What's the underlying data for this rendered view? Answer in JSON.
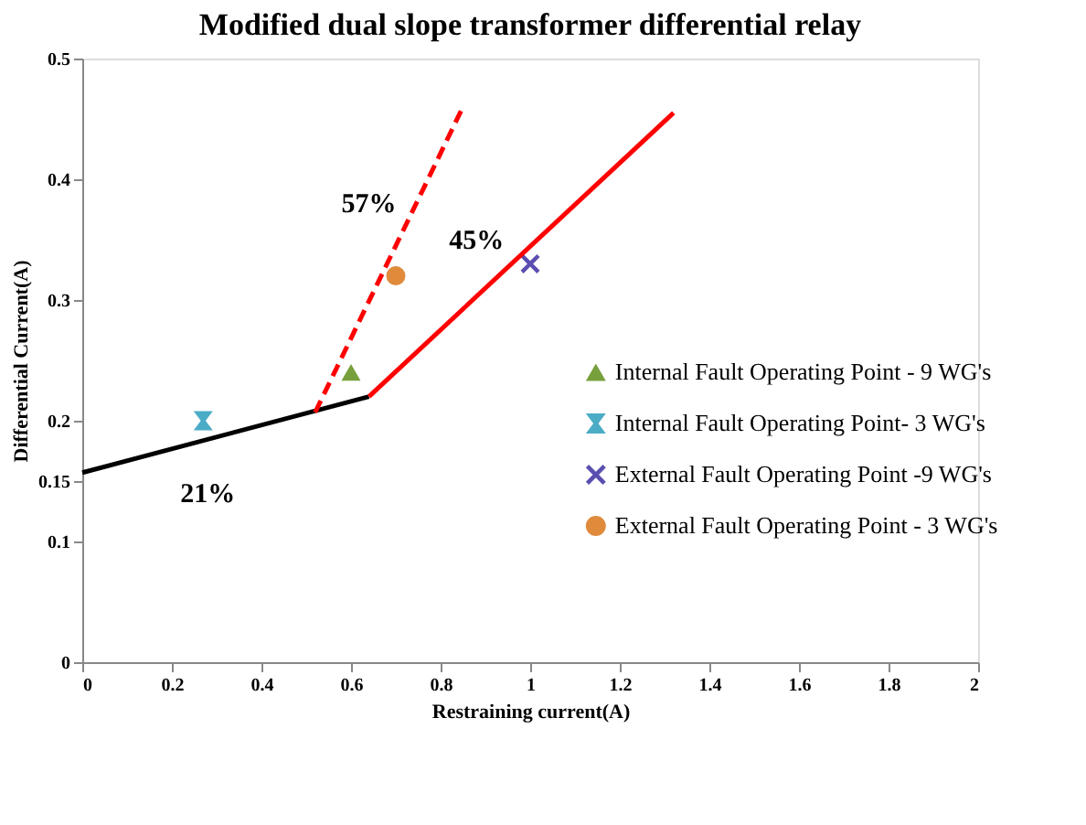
{
  "chart_data": {
    "type": "scatter",
    "title": "Modified dual  slope transformer  differential relay",
    "xlabel": "Restraining current(A)",
    "ylabel": "Differential Current(A)",
    "xlim": [
      0,
      2
    ],
    "xticks": [
      0,
      0.2,
      0.4,
      0.6,
      0.8,
      1,
      1.2,
      1.4,
      1.6,
      1.8,
      2
    ],
    "ylim": [
      0,
      0.5
    ],
    "yticks": [
      0,
      0.1,
      0.15,
      0.2,
      0.3,
      0.4,
      0.5
    ],
    "grid": false,
    "legend": "right",
    "series": [
      {
        "name": "Internal Fault Operating Point - 9 WG's",
        "color": "#77a03c",
        "marker": "triangle",
        "x": [
          0.6
        ],
        "values": [
          0.24
        ]
      },
      {
        "name": "Internal Fault Operating Point- 3 WG's",
        "color": "#4bacc6",
        "marker": "star",
        "x": [
          0.27
        ],
        "values": [
          0.2
        ]
      },
      {
        "name": "External Fault Operating Point -9 WG's",
        "color": "#5a4fb0",
        "marker": "cross",
        "x": [
          1.0
        ],
        "values": [
          0.33
        ]
      },
      {
        "name": "External Fault Operating Point - 3 WG's",
        "color": "#e08a3c",
        "marker": "circle",
        "x": [
          0.7
        ],
        "values": [
          0.32
        ]
      },
      {
        "type": "line",
        "color": "#000000",
        "line_style": "solid",
        "x": [
          0,
          0.64
        ],
        "values": [
          0.157,
          0.22
        ]
      },
      {
        "type": "line",
        "color": "#ff0000",
        "line_style": "solid",
        "x": [
          0.64,
          1.32
        ],
        "values": [
          0.22,
          0.455
        ]
      },
      {
        "type": "line",
        "color": "#ff0000",
        "line_style": "dashed",
        "x": [
          0.52,
          0.85
        ],
        "values": [
          0.207,
          0.46
        ]
      }
    ],
    "annotations": [
      "57%",
      "45%",
      "21%"
    ]
  }
}
